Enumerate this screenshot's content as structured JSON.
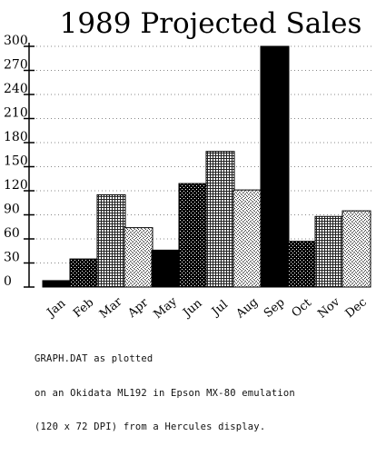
{
  "chart_data": {
    "type": "bar",
    "title": "1989 Projected Sales",
    "xlabel": "",
    "ylabel": "",
    "ylim": [
      0,
      300
    ],
    "yticks": [
      0,
      30,
      60,
      90,
      120,
      150,
      180,
      210,
      240,
      270,
      300
    ],
    "categories": [
      "Jan",
      "Feb",
      "Mar",
      "Apr",
      "May",
      "Jun",
      "Jul",
      "Aug",
      "Sep",
      "Oct",
      "Nov",
      "Dec"
    ],
    "values": [
      8,
      35,
      115,
      74,
      46,
      129,
      169,
      121,
      300,
      57,
      88,
      95
    ],
    "grid": true,
    "legend": "none",
    "pattern_colors": [
      "#000000",
      "#1a1a1a",
      "#6a6a6a",
      "#9a9a9a",
      "#0a0a0a",
      "#2b2b2b",
      "#4a4a4a",
      "#b5b5b5",
      "#000000",
      "#111111",
      "#666666",
      "#999999"
    ]
  },
  "caption": {
    "lines": [
      "GRAPH.DAT as plotted",
      "on an Okidata ML192 in Epson MX-80 emulation",
      "(120 x 72 DPI) from a Hercules display."
    ]
  }
}
